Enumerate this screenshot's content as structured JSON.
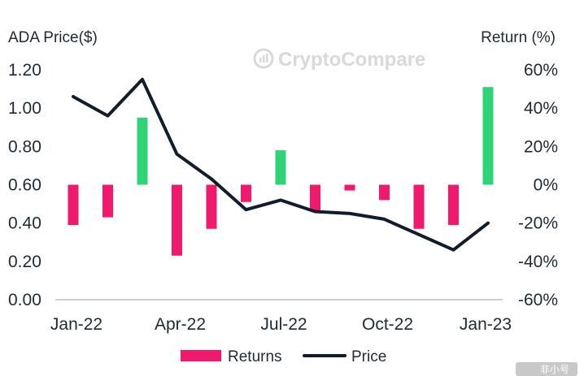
{
  "chart_data": {
    "type": "bar+line",
    "watermark": "CryptoCompare",
    "corner_mark": "非小号",
    "y_left_label": "ADA Price($)",
    "y_right_label": "Return (%)",
    "y_left_ticks": [
      "1.20",
      "1.00",
      "0.80",
      "0.60",
      "0.40",
      "0.20",
      "0.00"
    ],
    "y_right_ticks": [
      "60%",
      "40%",
      "20%",
      "0%",
      "-20%",
      "-40%",
      "-60%"
    ],
    "x_tick_labels": [
      "Jan-22",
      "Apr-22",
      "Jul-22",
      "Oct-22",
      "Jan-23"
    ],
    "ylim_left": [
      0,
      1.2
    ],
    "ylim_right": [
      -60,
      60
    ],
    "months": [
      "2022-01",
      "2022-02",
      "2022-03",
      "2022-04",
      "2022-05",
      "2022-06",
      "2022-07",
      "2022-08",
      "2022-09",
      "2022-10",
      "2022-11",
      "2022-12",
      "2023-01"
    ],
    "returns": [
      -21,
      -17,
      35,
      -37,
      -23,
      -9,
      18,
      -14,
      -3,
      -8,
      -23,
      -21,
      51
    ],
    "price": [
      1.06,
      0.96,
      1.15,
      0.76,
      0.63,
      0.47,
      0.52,
      0.46,
      0.45,
      0.42,
      0.34,
      0.26,
      0.4
    ],
    "series": [
      {
        "name": "Returns",
        "color": "#f0196b",
        "positive_color": "#2fd477",
        "axis": "right"
      },
      {
        "name": "Price",
        "color": "#121d2b",
        "axis": "left"
      }
    ],
    "legend_position": "bottom",
    "grid": false
  }
}
